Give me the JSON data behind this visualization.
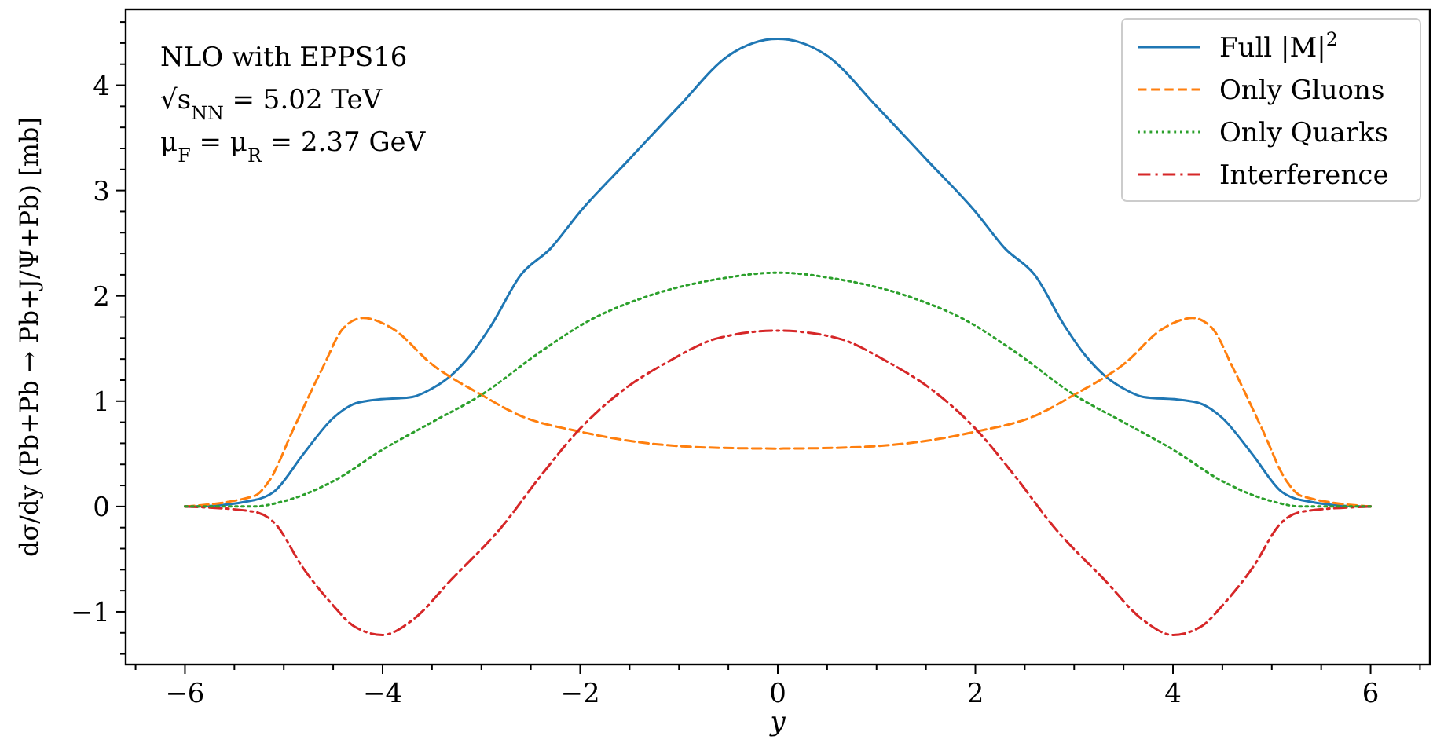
{
  "chart_data": {
    "type": "line",
    "xlabel": "y",
    "ylabel": "dσ/dy (Pb+Pb → Pb+J/Ψ+Pb) [mb]",
    "annotations": [
      "NLO with EPPS16",
      "√s$_{NN}$ = 5.02 TeV",
      "μ$_{F}$ = μ$_{R}$ = 2.37 GeV"
    ],
    "xlim": [
      -6.6,
      6.6
    ],
    "ylim": [
      -1.5,
      4.72
    ],
    "xticks": [
      {
        "value": -6.5,
        "label": null
      },
      {
        "value": -6,
        "label": "−6"
      },
      {
        "value": -5.5,
        "label": null
      },
      {
        "value": -5,
        "label": null
      },
      {
        "value": -4.5,
        "label": null
      },
      {
        "value": -4,
        "label": "−4"
      },
      {
        "value": -3.5,
        "label": null
      },
      {
        "value": -3,
        "label": null
      },
      {
        "value": -2.5,
        "label": null
      },
      {
        "value": -2,
        "label": "−2"
      },
      {
        "value": -1.5,
        "label": null
      },
      {
        "value": -1,
        "label": null
      },
      {
        "value": -0.5,
        "label": null
      },
      0,
      {
        "value": 0.5,
        "label": null
      },
      {
        "value": 1,
        "label": null
      },
      {
        "value": 1.5,
        "label": null
      },
      2,
      {
        "value": 2.5,
        "label": null
      },
      {
        "value": 3,
        "label": null
      },
      {
        "value": 3.5,
        "label": null
      },
      4,
      {
        "value": 4.5,
        "label": null
      },
      {
        "value": 5,
        "label": null
      },
      {
        "value": 5.5,
        "label": null
      },
      6,
      {
        "value": 6.5,
        "label": null
      }
    ],
    "yticks": [
      {
        "value": -1.4,
        "label": null
      },
      {
        "value": -1.2,
        "label": null
      },
      {
        "value": -1,
        "label": "−1"
      },
      {
        "value": -0.8,
        "label": null
      },
      {
        "value": -0.6,
        "label": null
      },
      {
        "value": -0.4,
        "label": null
      },
      {
        "value": -0.2,
        "label": null
      },
      0,
      {
        "value": 0.2,
        "label": null
      },
      {
        "value": 0.4,
        "label": null
      },
      {
        "value": 0.6,
        "label": null
      },
      {
        "value": 0.8,
        "label": null
      },
      1,
      {
        "value": 1.2,
        "label": null
      },
      {
        "value": 1.4,
        "label": null
      },
      {
        "value": 1.6,
        "label": null
      },
      {
        "value": 1.8,
        "label": null
      },
      2,
      {
        "value": 2.2,
        "label": null
      },
      {
        "value": 2.4,
        "label": null
      },
      {
        "value": 2.6,
        "label": null
      },
      {
        "value": 2.8,
        "label": null
      },
      3,
      {
        "value": 3.2,
        "label": null
      },
      {
        "value": 3.4,
        "label": null
      },
      {
        "value": 3.6,
        "label": null
      },
      {
        "value": 3.8,
        "label": null
      },
      4,
      {
        "value": 4.2,
        "label": null
      },
      {
        "value": 4.4,
        "label": null
      },
      {
        "value": 4.6,
        "label": null
      }
    ],
    "grid": false,
    "legend": "top right",
    "series": [
      {
        "name": "Full |M|$^{2}$",
        "color": "#1f77b4",
        "line_style": "solid",
        "x": [
          -6,
          -5.9,
          -5.3,
          -5.1,
          -4.8,
          -4.5,
          -4.3,
          -4.1,
          -3.7,
          -3.5,
          -3.3,
          -3.1,
          -2.9,
          -2.6,
          -2.3,
          -2,
          -1.5,
          -1,
          -0.5,
          0,
          0.5,
          1,
          1.5,
          2,
          2.3,
          2.6,
          2.9,
          3.1,
          3.3,
          3.5,
          3.7,
          4.1,
          4.3,
          4.5,
          4.8,
          5.1,
          5.3,
          5.9,
          6
        ],
        "values": [
          0,
          0,
          0.06,
          0.14,
          0.5,
          0.84,
          0.97,
          1.01,
          1.04,
          1.12,
          1.25,
          1.45,
          1.72,
          2.2,
          2.45,
          2.8,
          3.3,
          3.8,
          4.28,
          4.44,
          4.28,
          3.8,
          3.3,
          2.8,
          2.45,
          2.2,
          1.72,
          1.45,
          1.25,
          1.12,
          1.04,
          1.01,
          0.97,
          0.84,
          0.5,
          0.14,
          0.06,
          0,
          0
        ]
      },
      {
        "name": "Only Gluons",
        "color": "#ff7f0e",
        "line_style": "dashed",
        "x": [
          -6,
          -5.3,
          -5.15,
          -4.9,
          -4.6,
          -4.4,
          -4.2,
          -3.9,
          -3.5,
          -3,
          -2.6,
          -2,
          -1.4,
          -0.7,
          0,
          0.7,
          1.4,
          2,
          2.6,
          3,
          3.5,
          3.9,
          4.2,
          4.4,
          4.6,
          4.9,
          5.15,
          5.3,
          6
        ],
        "values": [
          0,
          0.1,
          0.24,
          0.74,
          1.33,
          1.69,
          1.79,
          1.69,
          1.35,
          1.06,
          0.86,
          0.71,
          0.61,
          0.56,
          0.55,
          0.56,
          0.61,
          0.71,
          0.86,
          1.06,
          1.35,
          1.69,
          1.79,
          1.69,
          1.33,
          0.74,
          0.24,
          0.1,
          0
        ]
      },
      {
        "name": "Only Quarks",
        "color": "#2ca02c",
        "line_style": "dotted",
        "x": [
          -6,
          -5.3,
          -5,
          -4.5,
          -4,
          -3.5,
          -3,
          -2.4,
          -1.9,
          -1.4,
          -0.6,
          0,
          0.6,
          1.4,
          1.9,
          2.4,
          3,
          3.5,
          4,
          4.5,
          5,
          5.3,
          6
        ],
        "values": [
          0,
          0,
          0.05,
          0.24,
          0.54,
          0.8,
          1.06,
          1.47,
          1.77,
          1.97,
          2.16,
          2.22,
          2.16,
          1.97,
          1.77,
          1.47,
          1.06,
          0.8,
          0.54,
          0.24,
          0.05,
          0,
          0
        ]
      },
      {
        "name": "Interference",
        "color": "#d62728",
        "line_style": "dashdot",
        "x": [
          -6,
          -5.3,
          -5.1,
          -4.8,
          -4.5,
          -4.3,
          -4,
          -3.7,
          -3.3,
          -2.8,
          -2.4,
          -2,
          -1.6,
          -1.1,
          -0.6,
          0,
          0.6,
          1.1,
          1.6,
          2,
          2.4,
          2.8,
          3.3,
          3.7,
          4,
          4.3,
          4.5,
          4.8,
          5.1,
          5.3,
          6
        ],
        "values": [
          0,
          -0.05,
          -0.15,
          -0.59,
          -0.94,
          -1.13,
          -1.22,
          -1.08,
          -0.69,
          -0.2,
          0.29,
          0.74,
          1.08,
          1.38,
          1.6,
          1.67,
          1.6,
          1.38,
          1.08,
          0.74,
          0.29,
          -0.2,
          -0.69,
          -1.08,
          -1.22,
          -1.13,
          -0.94,
          -0.59,
          -0.15,
          -0.05,
          0
        ]
      }
    ]
  }
}
